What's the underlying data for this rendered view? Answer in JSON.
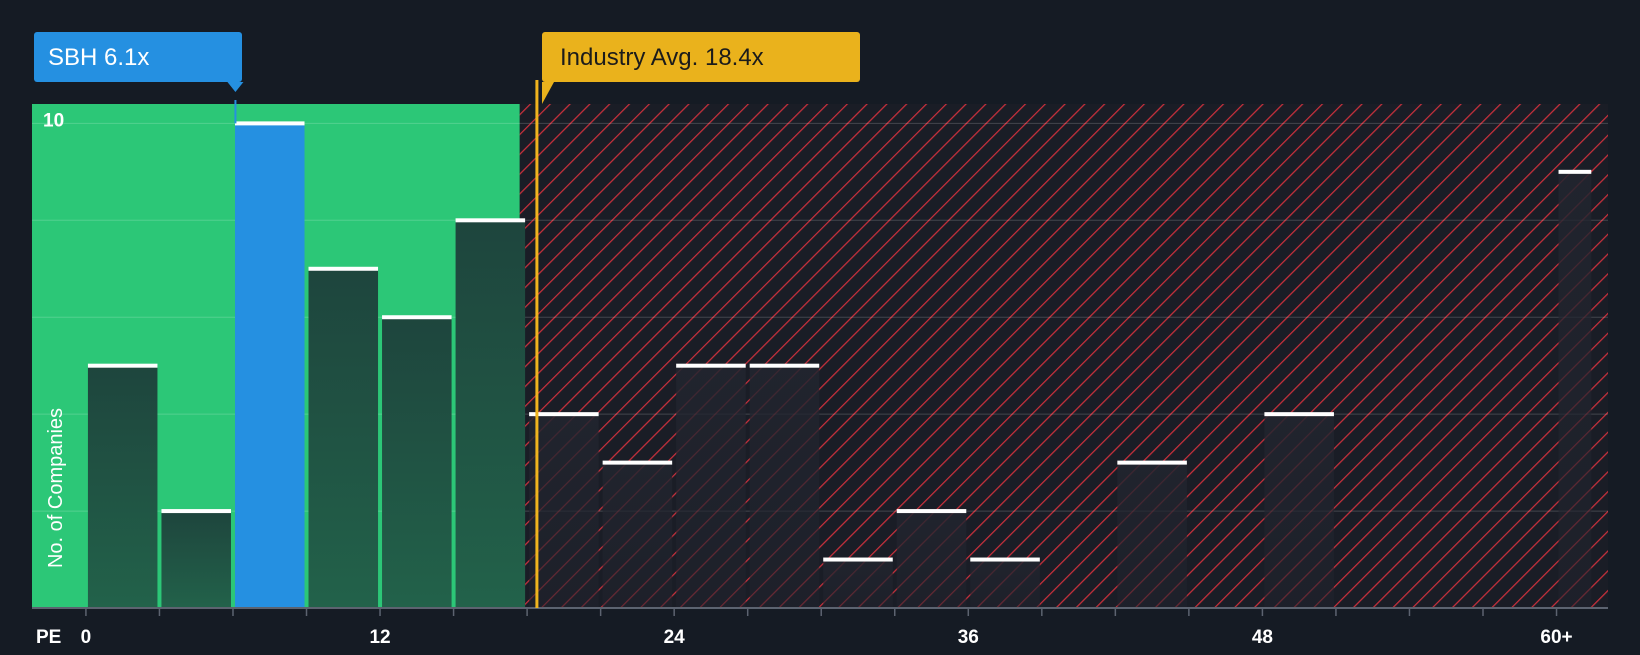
{
  "chart_data": {
    "type": "bar",
    "x_axis_label": "PE",
    "y_axis_label": "No. of Companies",
    "x_tick_labels": [
      {
        "value": 0,
        "label": "0"
      },
      {
        "value": 12,
        "label": "12"
      },
      {
        "value": 24,
        "label": "24"
      },
      {
        "value": 36,
        "label": "36"
      },
      {
        "value": 48,
        "label": "48"
      },
      {
        "value": 60,
        "label": "60+"
      }
    ],
    "y_tick_labels": [
      {
        "value": 10,
        "label": "10"
      }
    ],
    "ylim": [
      0,
      10.4
    ],
    "xlim": [
      -2.2,
      62.1
    ],
    "grid": true,
    "bars": [
      {
        "x0": 0,
        "x1": 3,
        "value": 5
      },
      {
        "x0": 3,
        "x1": 6,
        "value": 2
      },
      {
        "x0": 6,
        "x1": 9,
        "value": 10,
        "highlight": true
      },
      {
        "x0": 9,
        "x1": 12,
        "value": 7
      },
      {
        "x0": 12,
        "x1": 15,
        "value": 6
      },
      {
        "x0": 15,
        "x1": 18,
        "value": 8
      },
      {
        "x0": 18,
        "x1": 21,
        "value": 4
      },
      {
        "x0": 21,
        "x1": 24,
        "value": 3
      },
      {
        "x0": 24,
        "x1": 27,
        "value": 5
      },
      {
        "x0": 27,
        "x1": 30,
        "value": 5
      },
      {
        "x0": 30,
        "x1": 33,
        "value": 1
      },
      {
        "x0": 33,
        "x1": 36,
        "value": 2
      },
      {
        "x0": 36,
        "x1": 39,
        "value": 1
      },
      {
        "x0": 39,
        "x1": 42,
        "value": 0
      },
      {
        "x0": 42,
        "x1": 45,
        "value": 3
      },
      {
        "x0": 45,
        "x1": 48,
        "value": 0
      },
      {
        "x0": 48,
        "x1": 51,
        "value": 4
      },
      {
        "x0": 51,
        "x1": 54,
        "value": 0
      },
      {
        "x0": 54,
        "x1": 57,
        "value": 0
      },
      {
        "x0": 57,
        "x1": 60,
        "value": 0
      },
      {
        "x0": 60,
        "x1": 61.5,
        "value": 9
      }
    ],
    "annotations": [
      {
        "name": "company",
        "label": "SBH 6.1x",
        "x": 6.1
      },
      {
        "name": "industry-avg",
        "label": "Industry Avg. 18.4x",
        "x": 18.4
      }
    ],
    "undervalued_region_end": 17.7,
    "colors": {
      "background": "#151b24",
      "undervalued_zone": "#2cc777",
      "highlight_bar": "#2590e1",
      "company_label": "#2590e1",
      "industry_label": "#eab21c",
      "industry_line": "#f0b41e",
      "hatch": "#c8303c",
      "bar_cap": "#ffffff"
    }
  }
}
